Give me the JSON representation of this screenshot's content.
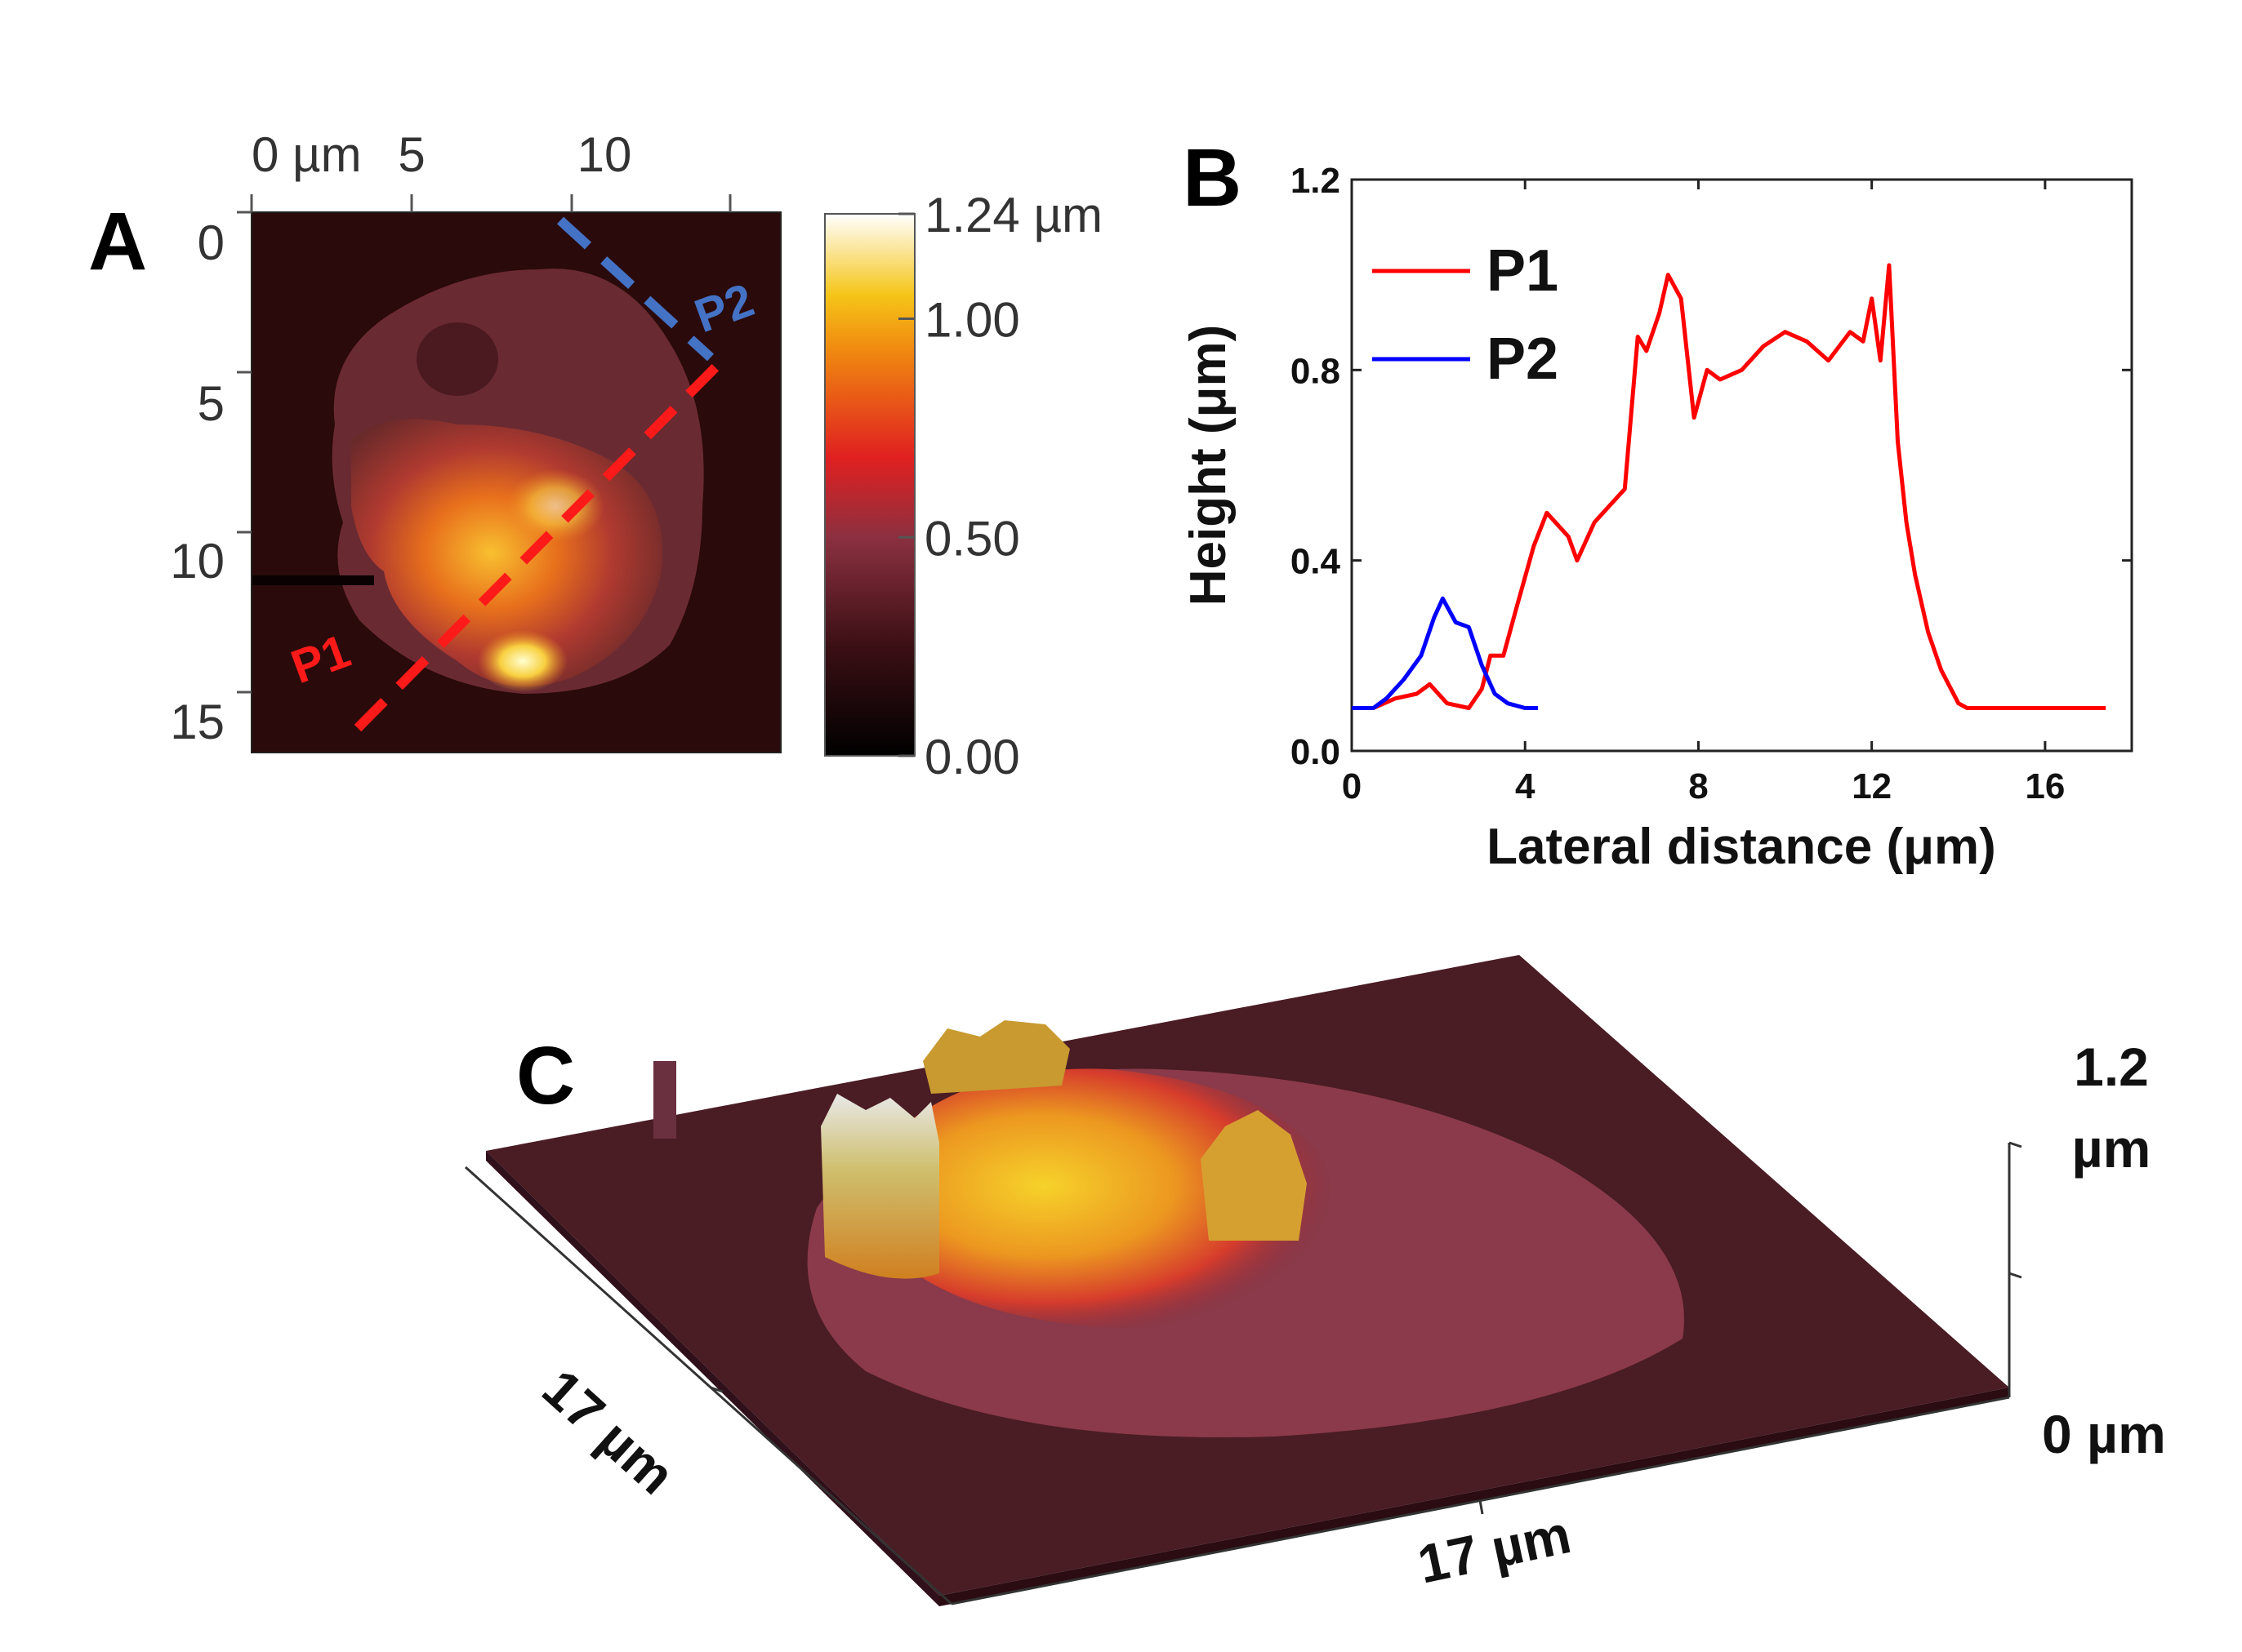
{
  "panels": {
    "a": "A",
    "b": "B",
    "c": "C"
  },
  "panel_a": {
    "x_ticks": [
      "0 µm",
      "5",
      "10"
    ],
    "y_ticks": [
      "0",
      "5",
      "10",
      "15"
    ],
    "colorbar_ticks": [
      "1.24 µm",
      "1.00",
      "0.50",
      "0.00"
    ],
    "colorbar_values": [
      1.24,
      1.0,
      0.5,
      0.0
    ],
    "colorbar_range": [
      0,
      1.24
    ],
    "line_labels": [
      "P1",
      "P2"
    ],
    "colors": {
      "p1": "#ff1a1a",
      "p2": "#4472c4",
      "background": "#2a0a0a"
    }
  },
  "chart_data": {
    "type": "line",
    "title": "",
    "xlabel": "Lateral distance (μm)",
    "ylabel": "Height (μm)",
    "xlim": [
      0,
      18
    ],
    "ylim": [
      0,
      1.2
    ],
    "x_ticks": [
      0,
      4,
      8,
      12,
      16
    ],
    "x_tick_labels": [
      "0",
      "4",
      "8",
      "12",
      "16"
    ],
    "y_ticks": [
      0,
      0.4,
      0.8,
      1.2
    ],
    "y_tick_labels": [
      "0.0",
      "0.4",
      "0.8",
      "1.2"
    ],
    "legend_position": "top-left",
    "series": [
      {
        "name": "P1",
        "color": "#ff0000",
        "x": [
          0,
          0.5,
          1.0,
          1.5,
          1.8,
          2.2,
          2.7,
          3.0,
          3.2,
          3.5,
          3.8,
          4.2,
          4.5,
          5.0,
          5.2,
          5.6,
          6.0,
          6.3,
          6.6,
          6.8,
          7.1,
          7.3,
          7.6,
          7.9,
          8.2,
          8.5,
          9.0,
          9.5,
          10.0,
          10.5,
          11.0,
          11.5,
          11.8,
          12.0,
          12.2,
          12.4,
          12.6,
          12.8,
          13.0,
          13.3,
          13.6,
          14.0,
          14.2,
          14.5,
          15.0,
          16.0,
          17.0,
          17.4
        ],
        "values": [
          0.09,
          0.09,
          0.11,
          0.12,
          0.14,
          0.1,
          0.09,
          0.13,
          0.2,
          0.2,
          0.3,
          0.43,
          0.5,
          0.45,
          0.4,
          0.48,
          0.52,
          0.55,
          0.87,
          0.84,
          0.92,
          1.0,
          0.95,
          0.7,
          0.8,
          0.78,
          0.8,
          0.85,
          0.88,
          0.86,
          0.82,
          0.88,
          0.86,
          0.95,
          0.82,
          1.02,
          0.65,
          0.48,
          0.37,
          0.25,
          0.17,
          0.1,
          0.09,
          0.09,
          0.09,
          0.09,
          0.09,
          0.09
        ]
      },
      {
        "name": "P2",
        "color": "#0000ff",
        "x": [
          0,
          0.5,
          0.8,
          1.2,
          1.6,
          1.9,
          2.1,
          2.4,
          2.7,
          3.0,
          3.3,
          3.6,
          4.0,
          4.3
        ],
        "values": [
          0.09,
          0.09,
          0.11,
          0.15,
          0.2,
          0.28,
          0.32,
          0.27,
          0.26,
          0.18,
          0.12,
          0.1,
          0.09,
          0.09
        ]
      }
    ]
  },
  "panel_c": {
    "depth_label": "17 µm",
    "width_label": "17 µm",
    "z_top_value": "1.2",
    "z_top_unit": "µm",
    "z_bottom": "0 µm"
  }
}
